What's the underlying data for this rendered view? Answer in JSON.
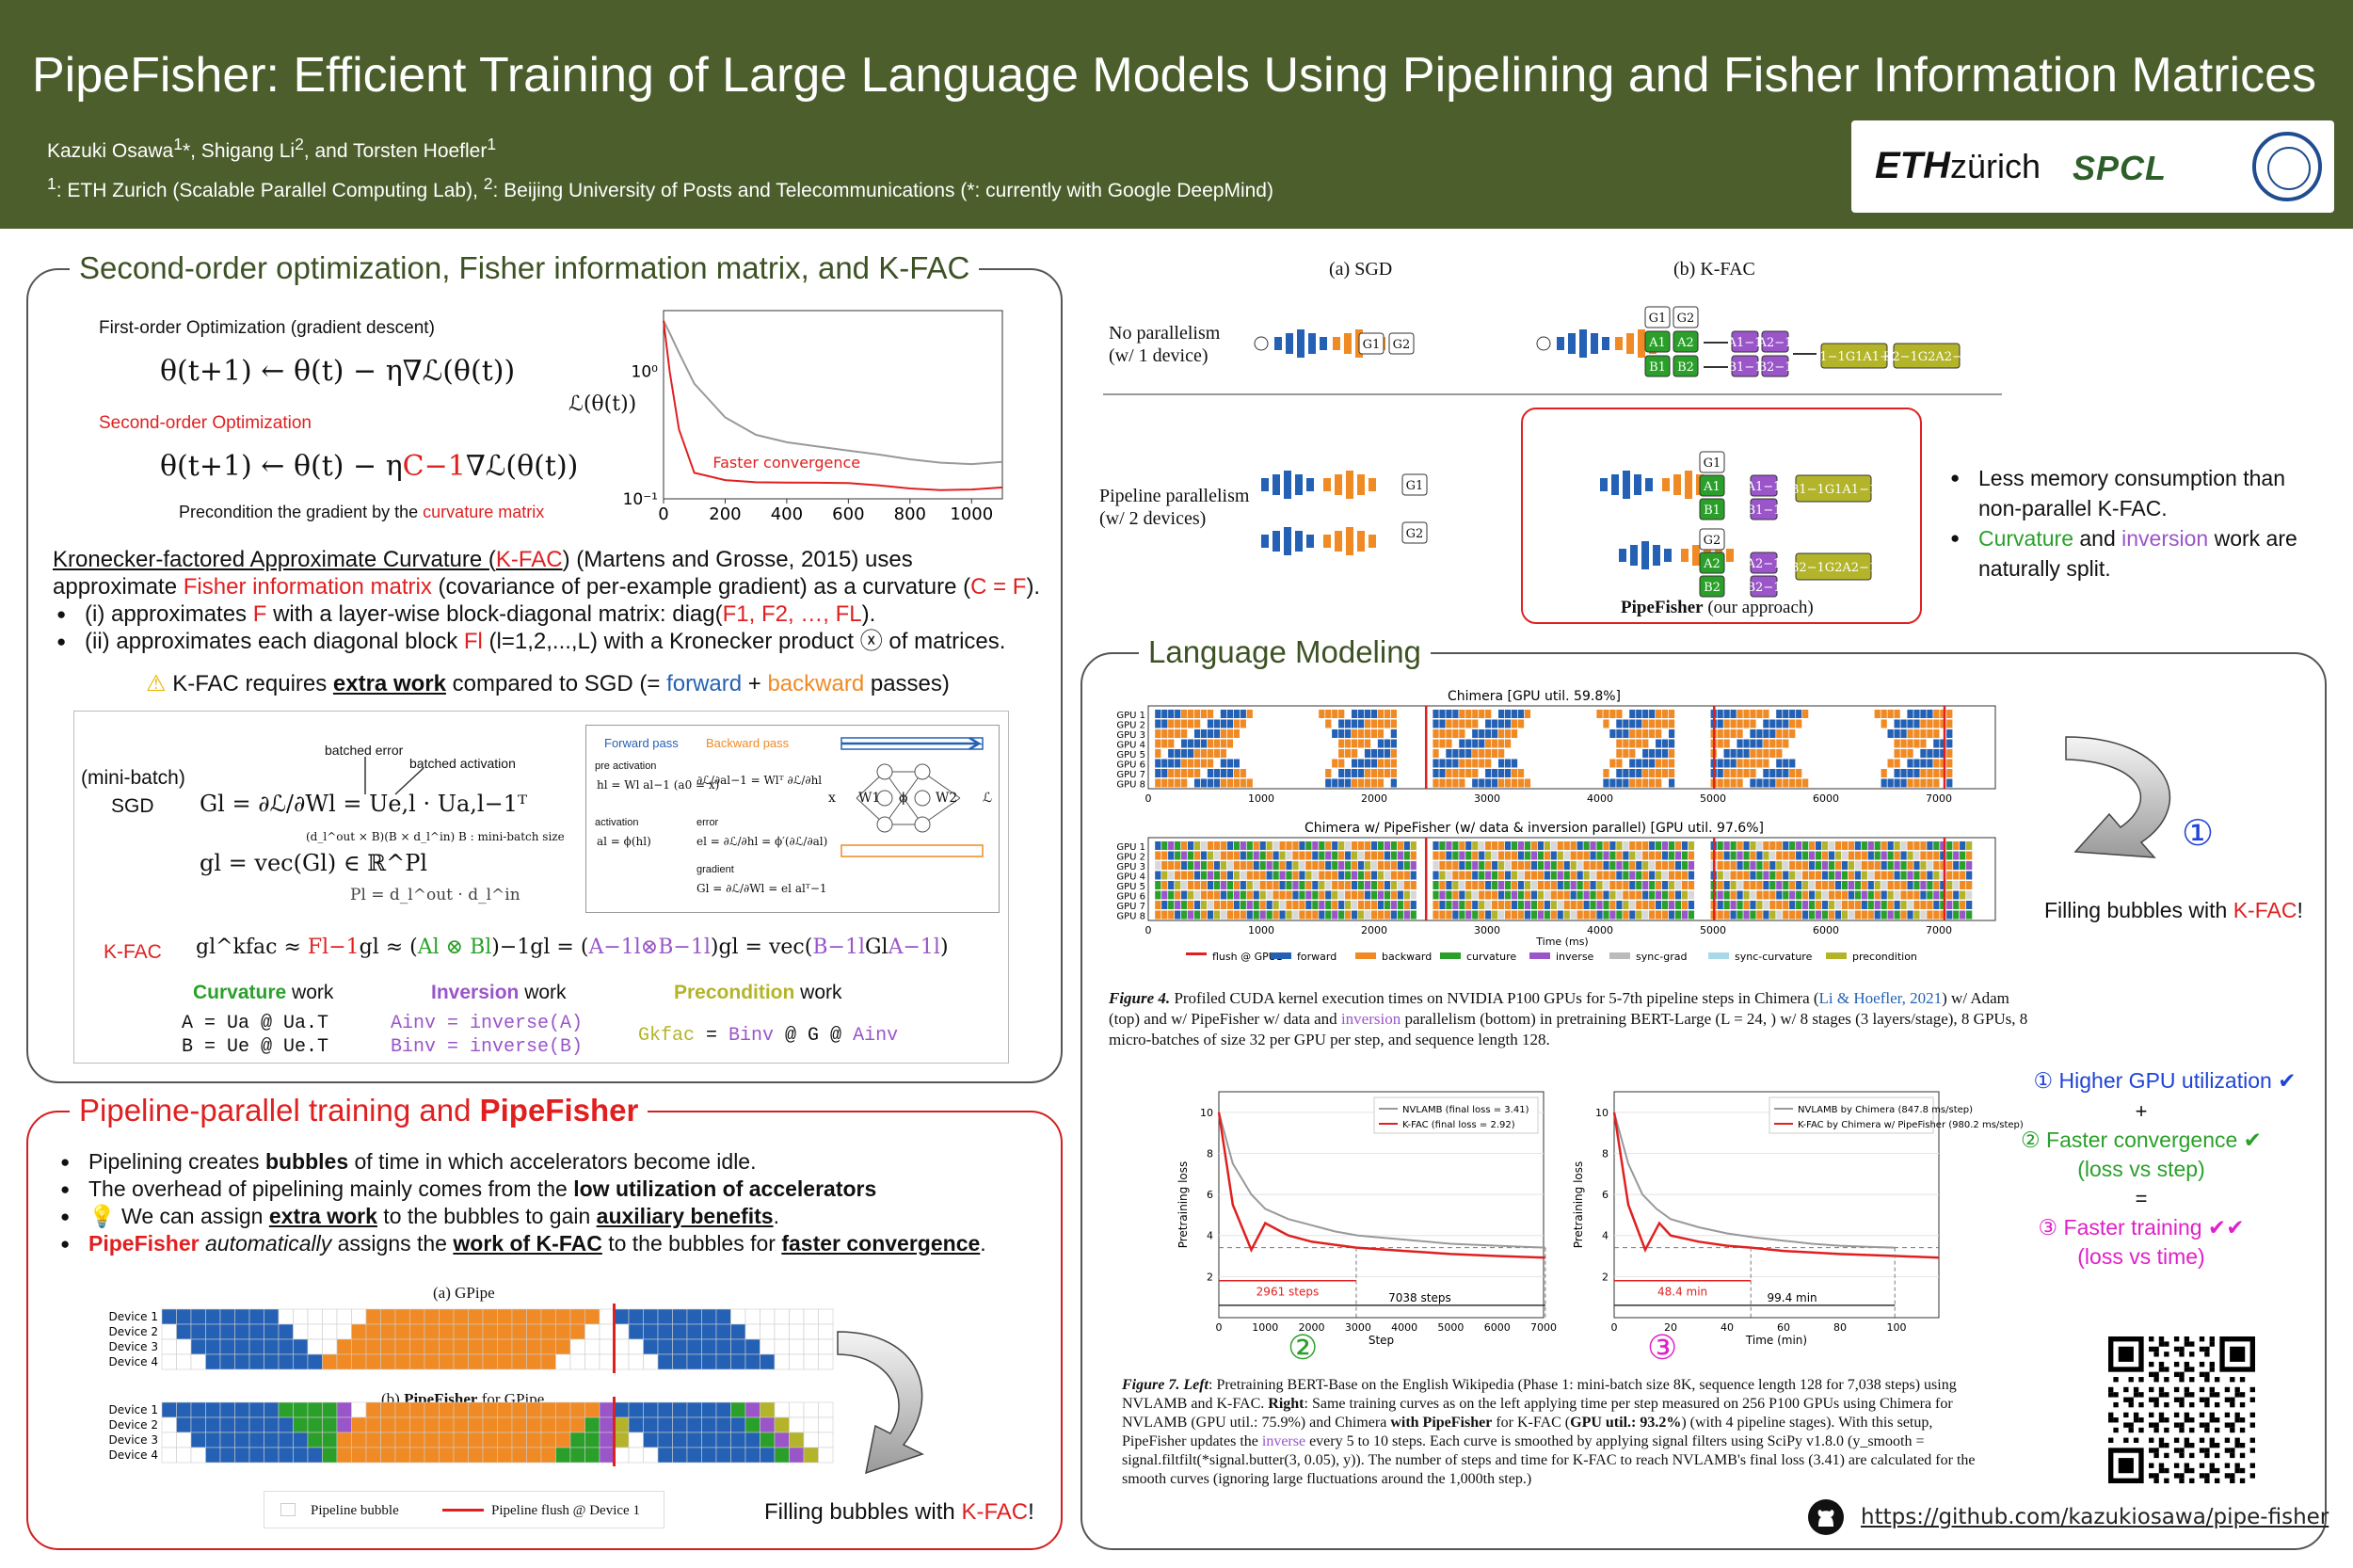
{
  "header": {
    "title": "PipeFisher: Efficient Training of Large Language Models Using Pipelining and Fisher Information Matrices",
    "authors": "Kazuki Osawa1*, Shigang Li2, and Torsten Hoefler1",
    "affiliations": "1: ETH Zurich (Scalable Parallel Computing Lab), 2: Beijing University of Posts and Telecommunications (*: currently with Google DeepMind)",
    "logo_eth": "ETH",
    "logo_zurich": "zürich",
    "logo_spcl": "SPCL"
  },
  "colors": {
    "header_bg": "#4b5e2b",
    "forward": "#2461b4",
    "backward": "#f08a24",
    "curvature": "#2aa02a",
    "inverse": "#9a55c9",
    "precondition": "#b3b42a",
    "flush": "#e02020"
  },
  "sec1": {
    "title": "Second-order optimization, Fisher information matrix, and K-FAC",
    "first_order": "First-order Optimization (gradient descent)",
    "eq1": "θ(t+1) ← θ(t) − η∇ℒ(θ(t))",
    "second_order": "Second-order Optimization",
    "eq2_a": "θ(t+1) ← θ(t) − η",
    "eq2_b": "C−1",
    "eq2_c": "∇ℒ(θ(t))",
    "precond_a": "Precondition the gradient by the ",
    "precond_b": "curvature matrix",
    "plot_ylabel": "ℒ(θ(t))",
    "plot_annotation": "Faster convergence",
    "kfac_line1_a": "Kronecker-factored Approximate Curvature (",
    "kfac_line1_b": "K-FAC",
    "kfac_line1_c": ") (Martens and Grosse, 2015) uses",
    "kfac_line2_a": "approximate ",
    "kfac_line2_b": "Fisher information matrix",
    "kfac_line2_c": " (covariance of per-example gradient) as a curvature (",
    "kfac_line2_d": "C = F",
    "kfac_line2_e": ").",
    "b1_a": "(i) approximates ",
    "b1_b": "F",
    "b1_c": " with a layer-wise block-diagonal matrix: diag(",
    "b1_d": "F1, F2, …, FL",
    "b1_e": ").",
    "b2_a": "(ii) approximates each diagonal block ",
    "b2_b": "Fl",
    "b2_c": " (l=1,2,...,L) with a Kronecker product ⓧ of matrices.",
    "warn_icon": "warning-icon",
    "warn_a": "K-FAC requires ",
    "warn_b": "extra work",
    "warn_c": " compared to SGD (= ",
    "warn_d": "forward",
    "warn_e": " + ",
    "warn_f": "backward",
    "warn_g": " passes)",
    "box": {
      "minibatch": "(mini-batch)",
      "sgd": "SGD",
      "batched_error": "batched error",
      "batched_activation": "batched activation",
      "sgd_eq": "Gl = ∂ℒ/∂Wl = Ue,l · Ua,l−1ᵀ",
      "dims": "(d_l^out × B)(B × d_l^in)   B : mini-batch size",
      "vec_eq": "gl = vec(Gl) ∈ ℝ^Pl",
      "pl_eq": "Pl = d_l^out · d_l^in",
      "kfac": "K-FAC",
      "kfac_eq_a": "gl^kfac ≈ ",
      "kfac_eq_b": "Fl−1",
      "kfac_eq_c": "gl ≈ (",
      "kfac_eq_d": "Al ⊗ Bl",
      "kfac_eq_e": ")−1gl = (",
      "kfac_eq_f": "A−1l⊗B−1l",
      "kfac_eq_g": ")gl = vec(",
      "kfac_eq_h": "B−1l",
      "kfac_eq_i": "Gl",
      "kfac_eq_j": "A−1l",
      "kfac_eq_k": ")",
      "fwd_pass": "Forward pass",
      "bwd_pass": "Backward pass",
      "pre_act": "pre activation",
      "pre_eq": "hl = Wl al−1   (a0 = x)",
      "act": "activation",
      "act_eq": "al = ϕ(hl)",
      "bwd_eq1": "∂ℒ/∂al−1 = Wlᵀ ∂ℒ/∂hl",
      "err": "error",
      "err_eq": "el = ∂ℒ/∂hl = ϕ′(∂ℒ/∂al)",
      "grad": "gradient",
      "grad_eq": "Gl = ∂ℒ/∂Wl = el alᵀ−1",
      "nn_x": "x",
      "nn_w1": "W1",
      "nn_phi": "ϕ",
      "nn_w2": "W2",
      "nn_l": "ℒ",
      "curv_a": "Curvature",
      "curv_b": " work",
      "inv_a": "Inversion",
      "inv_b": " work",
      "pre_a": "Precondition",
      "pre_b": " work",
      "code_a1": "A = Ua @ Ua.T",
      "code_a2": "B = Ue @ Ue.T",
      "code_b1": "Ainv = inverse(A)",
      "code_b2": "Binv = inverse(B)",
      "code_c_a": "Gkfac",
      "code_c_b": " = ",
      "code_c_c": "Binv",
      "code_c_d": " @ G @ ",
      "code_c_e": "Ainv"
    }
  },
  "sec2": {
    "title_a": "Pipeline-parallel training and ",
    "title_b": "PipeFisher",
    "l1_a": "Pipelining creates ",
    "l1_b": "bubbles",
    "l1_c": " of time in which accelerators become idle.",
    "l2_a": "The overhead of pipelining mainly comes from the ",
    "l2_b": "low utilization of accelerators",
    "l3_icon": "lightbulb-icon",
    "l3_a": " We can assign ",
    "l3_b": "extra work",
    "l3_c": " to the bubbles to gain ",
    "l3_d": "auxiliary benefits",
    "l3_e": ".",
    "l4_a": "PipeFisher",
    "l4_b": " automatically",
    "l4_c": " assigns the ",
    "l4_d": "work of K-FAC",
    "l4_e": " to the bubbles for ",
    "l4_f": "faster convergence",
    "l4_g": ".",
    "gpipe_title": "(a) GPipe",
    "pf_title_a": "(b) ",
    "pf_title_b": "PipeFisher",
    "pf_title_c": " for GPipe",
    "devices": [
      "Device 1",
      "Device 2",
      "Device 3",
      "Device 4"
    ],
    "legend_bubble": "Pipeline bubble",
    "legend_flush": "Pipeline flush @ Device 1",
    "filling_a": "Filling bubbles with ",
    "filling_b": "K-FAC",
    "filling_c": "!"
  },
  "sec3": {
    "sgd_title": "(a) SGD",
    "kfac_title": "(b) K-FAC",
    "no_par_1": "No parallelism",
    "no_par_2": "(w/ 1 device)",
    "pipe_par_1": "Pipeline parallelism",
    "pipe_par_2": "(w/ 2 devices)",
    "g1": "G1",
    "g2": "G2",
    "a1": "A1",
    "a2": "A2",
    "b1": "B1",
    "b2": "B2",
    "ai1": "A1−1",
    "ai2": "A2−1",
    "bi1": "B1−1",
    "bi2": "B2−1",
    "p1": "B1−1G1A1−1",
    "p2": "B2−1G2A2−1",
    "pipefisher_a": "PipeFisher",
    "pipefisher_b": " (our approach)",
    "bl1": "Less memory consumption than non-parallel K-FAC.",
    "bl2_a": "Curvature",
    "bl2_b": " and ",
    "bl2_c": "inversion",
    "bl2_d": " work are naturally split."
  },
  "sec4": {
    "title": "Language Modeling",
    "chimera_title": "Chimera [GPU util. 59.8%]",
    "chimera_pf_title": "Chimera w/ PipeFisher (w/ data & inversion parallel) [GPU util. 97.6%]",
    "gpus": [
      "GPU 1",
      "GPU 2",
      "GPU 3",
      "GPU 4",
      "GPU 5",
      "GPU 6",
      "GPU 7",
      "GPU 8"
    ],
    "xticks": [
      "0",
      "1000",
      "2000",
      "3000",
      "4000",
      "5000",
      "6000",
      "7000"
    ],
    "xlabel": "Time (ms)",
    "legend": [
      "flush @ GPU1",
      "forward",
      "backward",
      "curvature",
      "inverse",
      "sync-grad",
      "sync-curvature",
      "precondition"
    ],
    "circle1": "①",
    "fill_a": "Filling bubbles with ",
    "fill_b": "K-FAC",
    "fill_c": "!",
    "fig4_a": "Figure 4.",
    "fig4_b": " Profiled CUDA kernel execution times on NVIDIA P100 GPUs for 5-7th pipeline steps in Chimera (",
    "fig4_c": "Li & Hoefler, 2021",
    "fig4_d": ") w/ Adam (top) and w/ PipeFisher w/ data and ",
    "fig4_e": "inversion",
    "fig4_f": " parallelism (bottom) in pretraining BERT-Large (L = 24, ) w/ 8 stages (3 layers/stage), 8 GPUs, 8 micro-batches of size 32 per GPU per step, and sequence length 128.",
    "left_plot": {
      "legend": [
        "NVLAMB (final loss = 3.41)",
        "K-FAC (final loss = 2.92)"
      ],
      "ylabel": "Pretraining loss",
      "xlabel": "Step",
      "xticks": [
        "0",
        "1000",
        "2000",
        "3000",
        "4000",
        "5000",
        "6000",
        "7000"
      ],
      "yticks": [
        "2",
        "4",
        "6",
        "8",
        "10"
      ],
      "ann_a": "2961 steps",
      "ann_b": "7038 steps"
    },
    "right_plot": {
      "legend": [
        "NVLAMB by Chimera (847.8 ms/step)",
        "K-FAC by Chimera w/ PipeFisher (980.2 ms/step)"
      ],
      "ylabel": "Pretraining loss",
      "xlabel": "Time (min)",
      "xticks": [
        "0",
        "20",
        "40",
        "60",
        "80",
        "100"
      ],
      "yticks": [
        "2",
        "4",
        "6",
        "8",
        "10"
      ],
      "ann_a": "48.4 min",
      "ann_b": "99.4 min"
    },
    "circle2": "②",
    "circle3": "③",
    "s1": "① Higher GPU utilization ✔",
    "plus": "+",
    "s2a": "② Faster convergence ✔",
    "s2b": "(loss vs step)",
    "eq": "=",
    "s3a": "③ Faster training ✔✔",
    "s3b": "(loss vs time)",
    "fig7_a": "Figure 7. Left",
    "fig7_b": ": Pretraining BERT-Base on the English Wikipedia (Phase 1: mini-batch size 8K, sequence length 128 for 7,038 steps) using NVLAMB and K-FAC. ",
    "fig7_c": "Right",
    "fig7_d": ": Same training curves as on the left applying time per step measured on 256 P100 GPUs using Chimera for NVLAMB (GPU util.: 75.9%) and Chimera ",
    "fig7_e": "with PipeFisher",
    "fig7_f": " for K-FAC (",
    "fig7_g": "GPU util.: 93.2%",
    "fig7_h": ") (with 4 pipeline stages). With this setup, PipeFisher updates the ",
    "fig7_i": "inverse",
    "fig7_j": " every 5 to 10 steps. Each curve is smoothed by applying signal filters using SciPy v1.8.0 (y_smooth = signal.filtfilt(*signal.butter(3, 0.05), y)). The number of steps and time for K-FAC to reach NVLAMB's final loss (3.41) are calculated for the smooth curves (ignoring large fluctuations around the 1,000th step.)",
    "github_icon": "github-icon",
    "qr_icon": "qr-code-icon",
    "url": "https://github.com/kazukiosawa/pipe-fisher"
  },
  "chart_data": [
    {
      "type": "line",
      "yscale": "log",
      "ylim": [
        0.1,
        3
      ],
      "xlim": [
        0,
        1100
      ],
      "xticks": [
        "0",
        "200",
        "400",
        "600",
        "800",
        "1000"
      ],
      "yticks": [
        "10^0",
        "10^-1"
      ],
      "ylabel": "ℒ(θ(t))",
      "series": [
        {
          "color": "#999999",
          "x": [
            0,
            20,
            50,
            100,
            200,
            300,
            400,
            500,
            600,
            700,
            800,
            900,
            1000,
            1100
          ],
          "y": [
            2.5,
            2.0,
            1.4,
            0.8,
            0.45,
            0.33,
            0.28,
            0.25,
            0.23,
            0.22,
            0.21,
            0.2,
            0.19,
            0.19
          ]
        },
        {
          "color": "#e02020",
          "x": [
            0,
            20,
            50,
            100,
            200,
            300,
            400,
            500,
            600,
            700,
            800,
            900,
            1000,
            1100
          ],
          "y": [
            2.5,
            1.0,
            0.35,
            0.16,
            0.145,
            0.14,
            0.135,
            0.13,
            0.128,
            0.126,
            0.124,
            0.122,
            0.12,
            0.12
          ]
        }
      ],
      "annotation": "Faster convergence"
    },
    {
      "type": "line",
      "ylim": [
        0,
        11
      ],
      "xlim": [
        0,
        7000
      ],
      "xlabel": "Step",
      "ylabel": "Pretraining loss",
      "series": [
        {
          "name": "NVLAMB (final loss = 3.41)",
          "color": "#999999",
          "x": [
            0,
            300,
            700,
            1000,
            1500,
            2000,
            2500,
            3000,
            4000,
            5000,
            6000,
            7038
          ],
          "y": [
            10,
            7.5,
            6,
            5.3,
            4.8,
            4.5,
            4.2,
            4.0,
            3.8,
            3.6,
            3.5,
            3.41
          ]
        },
        {
          "name": "K-FAC (final loss = 2.92)",
          "color": "#e02020",
          "x": [
            0,
            300,
            700,
            1000,
            1500,
            2000,
            2961,
            4000,
            5000,
            6000,
            7038
          ],
          "y": [
            10,
            5.5,
            3.3,
            4.6,
            4.0,
            3.7,
            3.41,
            3.25,
            3.1,
            3.0,
            2.92
          ]
        }
      ],
      "annotations": [
        "2961 steps",
        "7038 steps"
      ]
    },
    {
      "type": "line",
      "ylim": [
        0,
        11
      ],
      "xlim": [
        0,
        115
      ],
      "xlabel": "Time (min)",
      "ylabel": "Pretraining loss",
      "series": [
        {
          "name": "NVLAMB by Chimera (847.8 ms/step)",
          "color": "#999999",
          "x": [
            0,
            5,
            10,
            15,
            20,
            30,
            40,
            50,
            60,
            70,
            80,
            90,
            99.4
          ],
          "y": [
            10,
            7.5,
            6,
            5.3,
            4.8,
            4.4,
            4.1,
            3.9,
            3.75,
            3.6,
            3.5,
            3.45,
            3.41
          ]
        },
        {
          "name": "K-FAC by Chimera w/ PipeFisher (980.2 ms/step)",
          "color": "#e02020",
          "x": [
            0,
            5,
            11,
            16,
            20,
            30,
            40,
            48.4,
            60,
            80,
            100,
            115
          ],
          "y": [
            10,
            5.5,
            3.3,
            4.6,
            4.0,
            3.7,
            3.5,
            3.41,
            3.25,
            3.1,
            3.0,
            2.92
          ]
        }
      ],
      "annotations": [
        "48.4 min",
        "99.4 min"
      ]
    }
  ]
}
